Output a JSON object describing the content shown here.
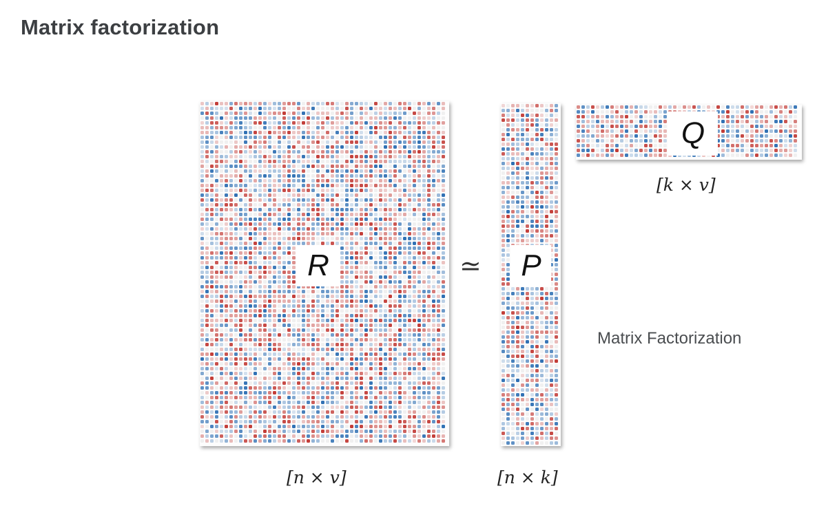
{
  "title": "Matrix factorization",
  "caption": "Matrix Factorization",
  "approx_symbol": "≃",
  "colors": {
    "title": "#3c3f42",
    "positive": "#c23b36",
    "negative": "#2e6fb3",
    "neutral": "#eeeeee"
  },
  "matrices": {
    "r": {
      "letter": "R",
      "dimension": "[n × v]"
    },
    "p": {
      "letter": "P",
      "dimension": "[n × k]"
    },
    "q": {
      "letter": "Q",
      "dimension": "[k × v]"
    }
  }
}
